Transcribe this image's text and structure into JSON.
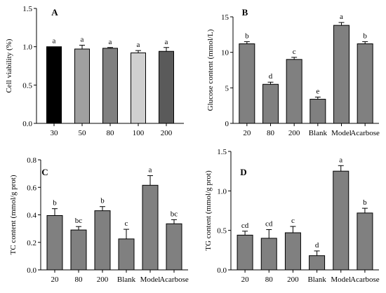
{
  "chart_data": [
    {
      "panel": "A",
      "type": "bar",
      "ylabel": "Cell viability (%)",
      "ylim": [
        0.0,
        1.5
      ],
      "yticks": [
        "0.0",
        "0.5",
        "1.0",
        "1.5"
      ],
      "ytick_values": [
        0,
        0.5,
        1.0,
        1.5
      ],
      "categories": [
        "30",
        "50",
        "80",
        "100",
        "200"
      ],
      "values": [
        1.0,
        0.97,
        0.98,
        0.92,
        0.94
      ],
      "errors": [
        0.0,
        0.05,
        0.01,
        0.03,
        0.05
      ],
      "labels": [
        "a",
        "a",
        "a",
        "a",
        "a"
      ],
      "colors": [
        "#000000",
        "#a0a0a0",
        "#808080",
        "#d0d0d0",
        "#5a5a5a"
      ]
    },
    {
      "panel": "B",
      "type": "bar",
      "ylabel": "Glucose content (mmol/L)",
      "ylim": [
        0,
        15
      ],
      "yticks": [
        "0",
        "5",
        "10",
        "15"
      ],
      "ytick_values": [
        0,
        5,
        10,
        15
      ],
      "categories": [
        "20",
        "80",
        "200",
        "Blank",
        "Model",
        "Acarbose"
      ],
      "values": [
        11.2,
        5.5,
        9.0,
        3.4,
        13.8,
        11.2
      ],
      "errors": [
        0.3,
        0.3,
        0.3,
        0.3,
        0.4,
        0.3
      ],
      "labels": [
        "b",
        "d",
        "c",
        "e",
        "a",
        "b"
      ],
      "colors": [
        "#808080",
        "#808080",
        "#808080",
        "#808080",
        "#808080",
        "#808080"
      ]
    },
    {
      "panel": "C",
      "type": "bar",
      "ylabel": "TC content (mmol/g prot)",
      "ylim": [
        0.0,
        0.8
      ],
      "yticks": [
        "0.0",
        "0.2",
        "0.4",
        "0.6",
        "0.8"
      ],
      "ytick_values": [
        0,
        0.2,
        0.4,
        0.6,
        0.8
      ],
      "categories": [
        "20",
        "80",
        "200",
        "Blank",
        "Model",
        "Acarbose"
      ],
      "values": [
        0.395,
        0.29,
        0.43,
        0.225,
        0.615,
        0.335
      ],
      "errors": [
        0.05,
        0.025,
        0.03,
        0.07,
        0.07,
        0.03
      ],
      "labels": [
        "b",
        "bc",
        "b",
        "c",
        "a",
        "bc"
      ],
      "colors": [
        "#808080",
        "#808080",
        "#808080",
        "#808080",
        "#808080",
        "#808080"
      ]
    },
    {
      "panel": "D",
      "type": "bar",
      "ylabel": "TG content (mmol/g prot)",
      "ylim": [
        0.0,
        1.5
      ],
      "yticks": [
        "0.0",
        "0.5",
        "1.0",
        "1.5"
      ],
      "ytick_values": [
        0,
        0.5,
        1.0,
        1.5
      ],
      "categories": [
        "20",
        "80",
        "200",
        "Blank",
        "Model",
        "Acarbose"
      ],
      "values": [
        0.44,
        0.4,
        0.47,
        0.18,
        1.25,
        0.72
      ],
      "errors": [
        0.05,
        0.11,
        0.08,
        0.06,
        0.07,
        0.06
      ],
      "labels": [
        "cd",
        "cd",
        "c",
        "d",
        "a",
        "b"
      ],
      "colors": [
        "#808080",
        "#808080",
        "#808080",
        "#808080",
        "#808080",
        "#808080"
      ]
    }
  ]
}
